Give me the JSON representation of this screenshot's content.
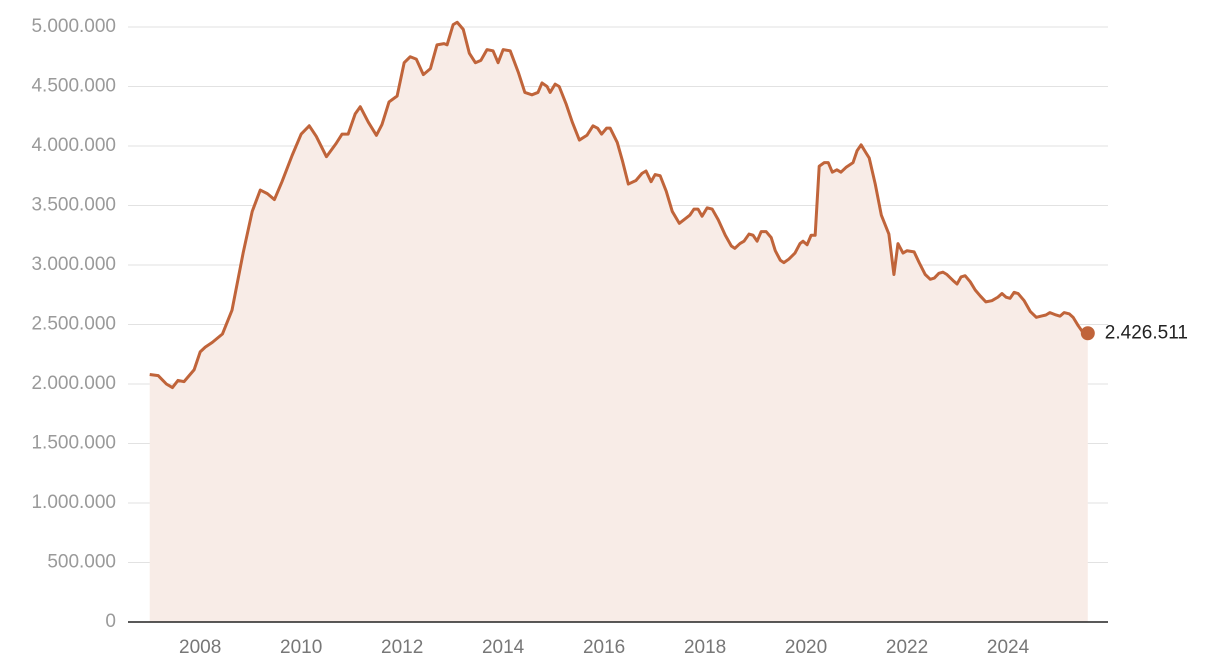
{
  "chart_data": {
    "type": "line",
    "x": [
      2007.0,
      2007.17,
      2007.33,
      2007.45,
      2007.56,
      2007.68,
      2007.88,
      2008.0,
      2008.1,
      2008.24,
      2008.44,
      2008.63,
      2008.85,
      2009.03,
      2009.19,
      2009.33,
      2009.47,
      2009.62,
      2009.82,
      2010.0,
      2010.16,
      2010.3,
      2010.5,
      2010.69,
      2010.81,
      2010.93,
      2011.07,
      2011.17,
      2011.33,
      2011.49,
      2011.6,
      2011.74,
      2011.9,
      2012.04,
      2012.16,
      2012.28,
      2012.42,
      2012.56,
      2012.69,
      2012.83,
      2012.89,
      2013.01,
      2013.09,
      2013.21,
      2013.33,
      2013.45,
      2013.56,
      2013.68,
      2013.8,
      2013.9,
      2014.0,
      2014.14,
      2014.3,
      2014.43,
      2014.57,
      2014.69,
      2014.77,
      2014.87,
      2014.93,
      2015.03,
      2015.11,
      2015.25,
      2015.37,
      2015.51,
      2015.66,
      2015.78,
      2015.87,
      2015.95,
      2016.05,
      2016.12,
      2016.26,
      2016.36,
      2016.48,
      2016.63,
      2016.75,
      2016.83,
      2016.93,
      2017.01,
      2017.11,
      2017.23,
      2017.35,
      2017.49,
      2017.58,
      2017.7,
      2017.78,
      2017.86,
      2017.94,
      2018.04,
      2018.14,
      2018.26,
      2018.4,
      2018.52,
      2018.59,
      2018.69,
      2018.77,
      2018.87,
      2018.95,
      2019.03,
      2019.11,
      2019.21,
      2019.31,
      2019.39,
      2019.49,
      2019.56,
      2019.66,
      2019.78,
      2019.88,
      2019.94,
      2020.02,
      2020.1,
      2020.18,
      2020.26,
      2020.36,
      2020.44,
      2020.52,
      2020.61,
      2020.69,
      2020.79,
      2020.93,
      2021.01,
      2021.09,
      2021.19,
      2021.25,
      2021.37,
      2021.49,
      2021.64,
      2021.74,
      2021.82,
      2021.92,
      2022.0,
      2022.14,
      2022.24,
      2022.36,
      2022.46,
      2022.54,
      2022.63,
      2022.71,
      2022.79,
      2022.91,
      2022.99,
      2023.07,
      2023.15,
      2023.25,
      2023.35,
      2023.45,
      2023.56,
      2023.68,
      2023.8,
      2023.88,
      2023.96,
      2024.04,
      2024.12,
      2024.2,
      2024.32,
      2024.44,
      2024.56,
      2024.65,
      2024.75,
      2024.83,
      2024.95,
      2025.03,
      2025.11,
      2025.21,
      2025.29,
      2025.39,
      2025.49,
      2025.58
    ],
    "series": [
      {
        "color": "#c0643a",
        "values": [
          2080000,
          2070000,
          2000000,
          1970000,
          2030000,
          2020000,
          2120000,
          2270000,
          2310000,
          2350000,
          2420000,
          2620000,
          3100000,
          3450000,
          3630000,
          3600000,
          3550000,
          3700000,
          3920000,
          4100000,
          4170000,
          4080000,
          3910000,
          4020000,
          4100000,
          4100000,
          4270000,
          4330000,
          4200000,
          4090000,
          4180000,
          4370000,
          4420000,
          4700000,
          4750000,
          4730000,
          4600000,
          4650000,
          4850000,
          4860000,
          4850000,
          5020000,
          5040000,
          4980000,
          4780000,
          4700000,
          4720000,
          4810000,
          4800000,
          4700000,
          4810000,
          4800000,
          4620000,
          4450000,
          4430000,
          4450000,
          4530000,
          4500000,
          4450000,
          4520000,
          4500000,
          4350000,
          4200000,
          4050000,
          4090000,
          4170000,
          4150000,
          4100000,
          4150000,
          4150000,
          4030000,
          3880000,
          3680000,
          3710000,
          3770000,
          3790000,
          3700000,
          3760000,
          3750000,
          3620000,
          3450000,
          3350000,
          3380000,
          3420000,
          3470000,
          3470000,
          3410000,
          3480000,
          3470000,
          3380000,
          3250000,
          3160000,
          3140000,
          3180000,
          3200000,
          3260000,
          3250000,
          3200000,
          3280000,
          3280000,
          3230000,
          3120000,
          3040000,
          3020000,
          3050000,
          3100000,
          3180000,
          3200000,
          3170000,
          3250000,
          3250000,
          3830000,
          3860000,
          3860000,
          3780000,
          3800000,
          3780000,
          3820000,
          3860000,
          3960000,
          4010000,
          3940000,
          3900000,
          3680000,
          3420000,
          3260000,
          2920000,
          3180000,
          3100000,
          3120000,
          3110000,
          3020000,
          2920000,
          2880000,
          2890000,
          2930000,
          2940000,
          2920000,
          2870000,
          2840000,
          2900000,
          2910000,
          2860000,
          2790000,
          2740000,
          2690000,
          2700000,
          2730000,
          2760000,
          2730000,
          2720000,
          2770000,
          2760000,
          2700000,
          2610000,
          2560000,
          2570000,
          2580000,
          2600000,
          2580000,
          2570000,
          2600000,
          2590000,
          2560000,
          2490000,
          2430000,
          2426511
        ],
        "value_labels": [
          null,
          null,
          null,
          null,
          null,
          null,
          null,
          null,
          null,
          null,
          null,
          null,
          null,
          null,
          null,
          null,
          null,
          null,
          null,
          null,
          null,
          null,
          null,
          null,
          null,
          null,
          null,
          null,
          null,
          null,
          null,
          null,
          null,
          null,
          null,
          null,
          null,
          null,
          null,
          null,
          null,
          null,
          null,
          null,
          null,
          null,
          null,
          null,
          null,
          null,
          null,
          null,
          null,
          null,
          null,
          null,
          null,
          null,
          null,
          null,
          null,
          null,
          null,
          null,
          null,
          null,
          null,
          null,
          null,
          null,
          null,
          null,
          null,
          null,
          null,
          null,
          null,
          null,
          null,
          null,
          null,
          null,
          null,
          null,
          null,
          null,
          null,
          null,
          null,
          null,
          null,
          null,
          null,
          null,
          null,
          null,
          null,
          null,
          null,
          null,
          null,
          null,
          null,
          null,
          null,
          null,
          null,
          null,
          null,
          null,
          null,
          null,
          null,
          null,
          null,
          null,
          null,
          null,
          null,
          null,
          null,
          null,
          null,
          null,
          null,
          null,
          null,
          null,
          null,
          null,
          null,
          null,
          null,
          null,
          null,
          null,
          null,
          null,
          null,
          null,
          null,
          null,
          null,
          null,
          null,
          null,
          null,
          null,
          null,
          null,
          null,
          null,
          null,
          null,
          null,
          null,
          null,
          null,
          null,
          null,
          null,
          null,
          null,
          null,
          null,
          null,
          "2.426.511"
        ]
      }
    ],
    "area_color": "#f8ece7",
    "xlim": [
      2006.57,
      2025.98
    ],
    "xticks": [
      2008,
      2010,
      2012,
      2014,
      2016,
      2018,
      2020,
      2022,
      2024
    ],
    "ylim": [
      0,
      5000000
    ],
    "yticks": [
      0,
      {
        "value": 500000,
        "label": "500.000"
      },
      {
        "value": 1000000,
        "label": "1.000.000"
      },
      {
        "value": 1500000,
        "label": "1.500.000"
      },
      {
        "value": 2000000,
        "label": "2.000.000"
      },
      {
        "value": 2500000,
        "label": "2.500.000"
      },
      {
        "value": 3000000,
        "label": "3.000.000"
      },
      {
        "value": 3500000,
        "label": "3.500.000"
      },
      {
        "value": 4000000,
        "label": "4.000.000"
      },
      {
        "value": 4500000,
        "label": "4.500.000"
      },
      {
        "value": 5000000,
        "label": "5.000.000"
      }
    ],
    "grid": true
  }
}
